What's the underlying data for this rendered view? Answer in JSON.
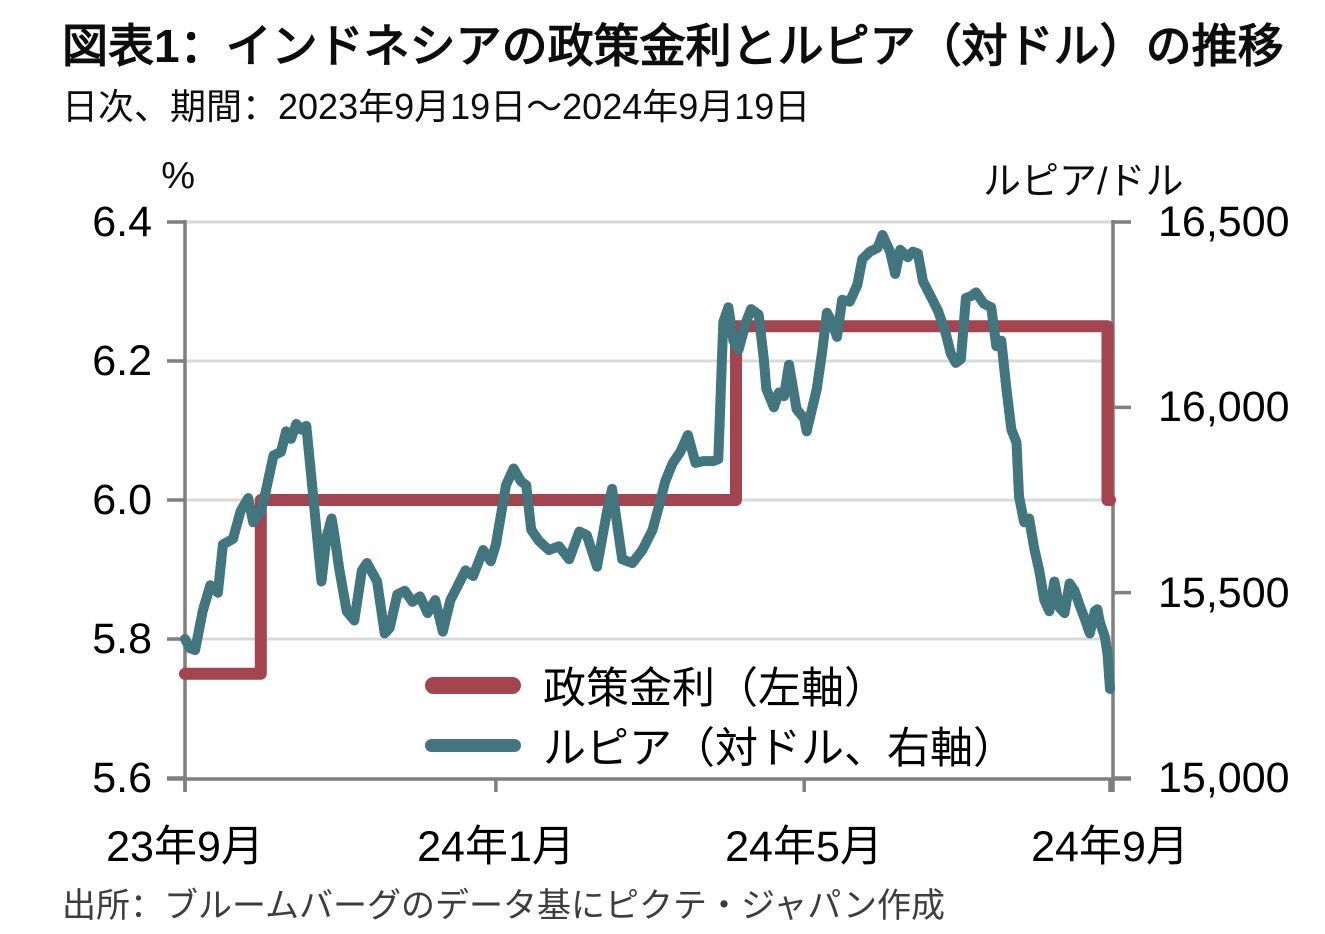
{
  "header": {
    "title": "図表1：インドネシアの政策金利とルピア（対ドル）の推移",
    "subtitle": "日次、期間：2023年9月19日～2024年9月19日"
  },
  "footer": {
    "source": "出所：ブルームバーグのデータ基にピクテ・ジャパン作成"
  },
  "colors": {
    "policy_rate": "#A4444E",
    "rupiah": "#41767E",
    "gridline": "#D9D9D9",
    "axis": "#7F7F7F",
    "background": "#FFFFFF"
  },
  "chart_data": {
    "type": "line",
    "dual_axis": true,
    "title": "図表1：インドネシアの政策金利とルピア（対ドル）の推移",
    "subtitle": "日次、期間：2023年9月19日～2024年9月19日",
    "x_axis": {
      "start_date": "2023-09-19",
      "end_date": "2024-09-19",
      "range_days": [
        0,
        366
      ],
      "tick_labels": [
        "23年9月",
        "24年1月",
        "24年5月",
        "24年9月"
      ],
      "tick_days": [
        0,
        123,
        245,
        366
      ]
    },
    "left_axis": {
      "unit_label": "%",
      "min": 5.6,
      "max": 6.4,
      "ticks": [
        "6.4",
        "6.2",
        "6.0",
        "5.8",
        "5.6"
      ],
      "tick_values": [
        6.4,
        6.2,
        6.0,
        5.8,
        5.6
      ]
    },
    "right_axis": {
      "unit_label": "ルピア/ドル",
      "min": 15000,
      "max": 16500,
      "ticks": [
        "16,500",
        "16,000",
        "15,500",
        "15,000"
      ],
      "tick_values": [
        16500,
        16000,
        15500,
        15000
      ]
    },
    "grid": "horizontal-only",
    "legend_position": "inside-bottom-center",
    "series": [
      {
        "name": "政策金利（左軸）",
        "axis": "left",
        "type": "step",
        "color": "#A4444E",
        "stroke_width": 12,
        "points": [
          {
            "day": 0,
            "date": "2023-09-19",
            "value": 5.75
          },
          {
            "day": 30,
            "date": "2023-10-19",
            "value": 6.0
          },
          {
            "day": 218,
            "date": "2024-04-24",
            "value": 6.25
          },
          {
            "day": 365,
            "date": "2024-09-18",
            "value": 6.0
          },
          {
            "day": 366,
            "date": "2024-09-19",
            "value": 6.0
          }
        ]
      },
      {
        "name": "ルピア（対ドル、右軸）",
        "axis": "right",
        "type": "line",
        "color": "#41767E",
        "stroke_width": 10,
        "points": [
          [
            0,
            15375
          ],
          [
            2,
            15350
          ],
          [
            4,
            15345
          ],
          [
            7,
            15450
          ],
          [
            10,
            15520
          ],
          [
            13,
            15500
          ],
          [
            15,
            15630
          ],
          [
            19,
            15645
          ],
          [
            22,
            15720
          ],
          [
            25,
            15755
          ],
          [
            27,
            15690
          ],
          [
            30,
            15720
          ],
          [
            32,
            15775
          ],
          [
            35,
            15870
          ],
          [
            38,
            15880
          ],
          [
            40,
            15935
          ],
          [
            42,
            15915
          ],
          [
            44,
            15955
          ],
          [
            46,
            15940
          ],
          [
            48,
            15950
          ],
          [
            50,
            15810
          ],
          [
            52,
            15670
          ],
          [
            54,
            15530
          ],
          [
            56,
            15650
          ],
          [
            58,
            15700
          ],
          [
            59,
            15660
          ],
          [
            61,
            15565
          ],
          [
            64,
            15450
          ],
          [
            67,
            15425
          ],
          [
            70,
            15560
          ],
          [
            72,
            15580
          ],
          [
            76,
            15530
          ],
          [
            79,
            15390
          ],
          [
            81,
            15405
          ],
          [
            84,
            15495
          ],
          [
            87,
            15505
          ],
          [
            90,
            15475
          ],
          [
            93,
            15490
          ],
          [
            96,
            15445
          ],
          [
            99,
            15480
          ],
          [
            102,
            15395
          ],
          [
            105,
            15480
          ],
          [
            108,
            15520
          ],
          [
            111,
            15560
          ],
          [
            114,
            15545
          ],
          [
            118,
            15615
          ],
          [
            121,
            15585
          ],
          [
            123,
            15630
          ],
          [
            127,
            15790
          ],
          [
            130,
            15835
          ],
          [
            133,
            15800
          ],
          [
            135,
            15790
          ],
          [
            137,
            15670
          ],
          [
            140,
            15640
          ],
          [
            144,
            15615
          ],
          [
            148,
            15625
          ],
          [
            152,
            15590
          ],
          [
            156,
            15665
          ],
          [
            159,
            15655
          ],
          [
            163,
            15570
          ],
          [
            167,
            15720
          ],
          [
            169,
            15780
          ],
          [
            173,
            15590
          ],
          [
            177,
            15580
          ],
          [
            181,
            15615
          ],
          [
            185,
            15670
          ],
          [
            188,
            15745
          ],
          [
            190,
            15800
          ],
          [
            193,
            15850
          ],
          [
            196,
            15880
          ],
          [
            199,
            15925
          ],
          [
            202,
            15850
          ],
          [
            205,
            15855
          ],
          [
            209,
            15855
          ],
          [
            211,
            15860
          ],
          [
            213,
            16230
          ],
          [
            215,
            16270
          ],
          [
            217,
            16180
          ],
          [
            219,
            16155
          ],
          [
            222,
            16230
          ],
          [
            224,
            16265
          ],
          [
            227,
            16250
          ],
          [
            229,
            16130
          ],
          [
            230,
            16050
          ],
          [
            233,
            16000
          ],
          [
            235,
            16040
          ],
          [
            237,
            16030
          ],
          [
            239,
            16115
          ],
          [
            242,
            15995
          ],
          [
            245,
            15970
          ],
          [
            246,
            15935
          ],
          [
            250,
            16050
          ],
          [
            252,
            16145
          ],
          [
            254,
            16255
          ],
          [
            256,
            16230
          ],
          [
            258,
            16190
          ],
          [
            260,
            16290
          ],
          [
            263,
            16285
          ],
          [
            266,
            16330
          ],
          [
            268,
            16400
          ],
          [
            271,
            16420
          ],
          [
            274,
            16430
          ],
          [
            276,
            16465
          ],
          [
            279,
            16420
          ],
          [
            281,
            16360
          ],
          [
            283,
            16425
          ],
          [
            286,
            16405
          ],
          [
            288,
            16420
          ],
          [
            290,
            16415
          ],
          [
            292,
            16340
          ],
          [
            295,
            16300
          ],
          [
            298,
            16260
          ],
          [
            301,
            16200
          ],
          [
            303,
            16145
          ],
          [
            305,
            16120
          ],
          [
            307,
            16130
          ],
          [
            309,
            16295
          ],
          [
            311,
            16300
          ],
          [
            313,
            16310
          ],
          [
            316,
            16280
          ],
          [
            319,
            16270
          ],
          [
            321,
            16165
          ],
          [
            323,
            16180
          ],
          [
            325,
            16050
          ],
          [
            327,
            15940
          ],
          [
            329,
            15905
          ],
          [
            330,
            15760
          ],
          [
            332,
            15690
          ],
          [
            334,
            15700
          ],
          [
            336,
            15620
          ],
          [
            338,
            15560
          ],
          [
            340,
            15480
          ],
          [
            342,
            15450
          ],
          [
            344,
            15530
          ],
          [
            346,
            15460
          ],
          [
            348,
            15445
          ],
          [
            350,
            15525
          ],
          [
            352,
            15505
          ],
          [
            354,
            15465
          ],
          [
            356,
            15430
          ],
          [
            358,
            15390
          ],
          [
            360,
            15450
          ],
          [
            361,
            15455
          ],
          [
            362,
            15420
          ],
          [
            363,
            15400
          ],
          [
            364,
            15380
          ],
          [
            365,
            15335
          ],
          [
            366,
            15240
          ]
        ]
      }
    ]
  }
}
